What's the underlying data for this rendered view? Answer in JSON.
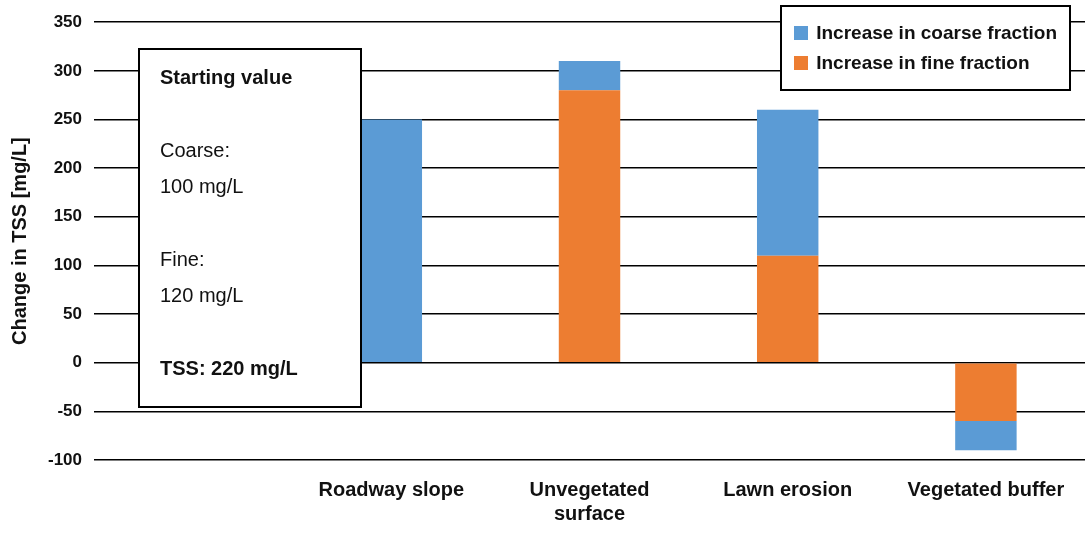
{
  "chart_data": {
    "type": "bar",
    "ylabel": "Change in TSS [mg/L]",
    "categories": [
      null,
      "Roadway slope",
      "Unvegetated surface",
      "Lawn erosion",
      "Vegetated buffer"
    ],
    "series": [
      {
        "name": "Increase in fine fraction",
        "color": "#ed7d31",
        "values": [
          null,
          0,
          280,
          110,
          -60
        ]
      },
      {
        "name": "Increase in coarse fraction",
        "color": "#5b9bd5",
        "values": [
          null,
          250,
          30,
          150,
          -30
        ]
      }
    ],
    "stacked": true,
    "ylim": [
      -100,
      350
    ],
    "yticks": [
      -100,
      -50,
      0,
      50,
      100,
      150,
      200,
      250,
      300,
      350
    ],
    "grid": "y",
    "legend": "top right",
    "annotations": [
      "Starting value",
      "Coarse:",
      "100 mg/L",
      "Fine:",
      "120 mg/L",
      "TSS: 220 mg/L"
    ]
  }
}
